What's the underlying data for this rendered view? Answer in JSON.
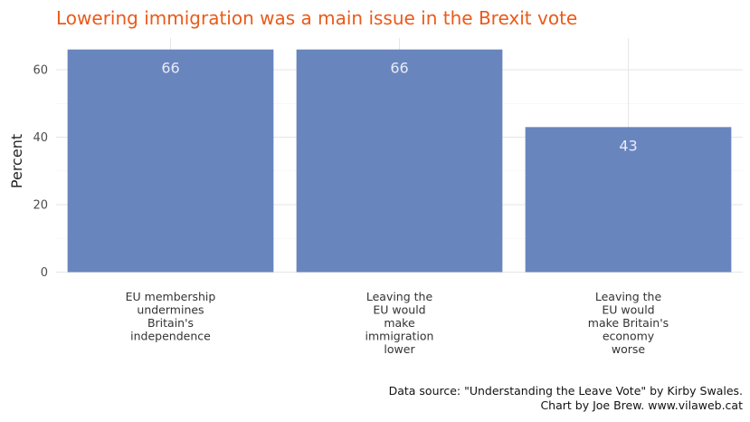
{
  "chart_data": {
    "type": "bar",
    "title": "Lowering immigration was a main issue in the Brexit vote",
    "xlabel": "",
    "ylabel": "Percent",
    "categories": [
      [
        "EU membership",
        "undermines",
        "Britain's",
        "independence"
      ],
      [
        "Leaving the",
        "EU would",
        "make",
        "immigration",
        "lower"
      ],
      [
        "Leaving the",
        "EU would",
        "make Britain's",
        "economy",
        "worse"
      ]
    ],
    "values": [
      66,
      66,
      43
    ],
    "data_labels": [
      "66",
      "66",
      "43"
    ],
    "ylim": [
      0,
      70
    ],
    "yticks": [
      0,
      20,
      40,
      60
    ],
    "ytick_labels": [
      "0",
      "20",
      "40",
      "60"
    ],
    "grid": true,
    "legend": "none",
    "caption": [
      "Data source: \"Understanding the Leave Vote\" by Kirby Swales.",
      "Chart by Joe Brew. www.vilaweb.cat"
    ]
  },
  "colors": {
    "bar": "#6985be",
    "title": "#ea5a1a",
    "data_label": "#e8ecf6"
  }
}
